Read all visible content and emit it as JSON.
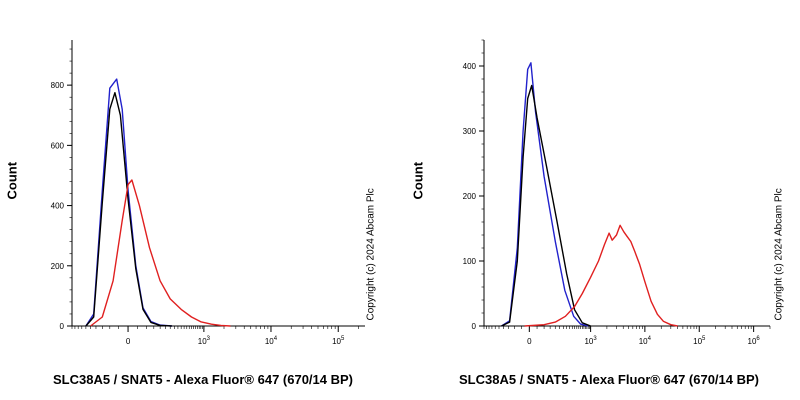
{
  "copyright": "Copyright (c) 2024 Abcam Plc",
  "colors": {
    "black": "#000000",
    "blue": "#2222cc",
    "red": "#e02020"
  },
  "chart_data": [
    {
      "type": "line",
      "ylabel": "Count",
      "xlabel": "SLC38A5 / SNAT5 - Alexa Fluor® 647 (670/14 BP)",
      "x_scale": "biexponential",
      "x_ticks": [
        "0",
        "10^3",
        "10^4",
        "10^5"
      ],
      "y_ticks": [
        0,
        200,
        400,
        600,
        800
      ],
      "ylim": [
        0,
        950
      ],
      "series": [
        {
          "color": "#2222cc",
          "points": [
            [
              -300,
              0
            ],
            [
              -220,
              40
            ],
            [
              -150,
              450
            ],
            [
              -100,
              790
            ],
            [
              -60,
              820
            ],
            [
              -30,
              720
            ],
            [
              0,
              450
            ],
            [
              40,
              200
            ],
            [
              80,
              60
            ],
            [
              130,
              15
            ],
            [
              200,
              3
            ],
            [
              320,
              0
            ]
          ]
        },
        {
          "color": "#000000",
          "points": [
            [
              -300,
              0
            ],
            [
              -220,
              30
            ],
            [
              -150,
              410
            ],
            [
              -100,
              720
            ],
            [
              -70,
              775
            ],
            [
              -40,
              700
            ],
            [
              0,
              420
            ],
            [
              40,
              190
            ],
            [
              80,
              55
            ],
            [
              130,
              12
            ],
            [
              200,
              2
            ],
            [
              320,
              0
            ]
          ]
        },
        {
          "color": "#e02020",
          "points": [
            [
              -250,
              0
            ],
            [
              -150,
              30
            ],
            [
              -80,
              150
            ],
            [
              -30,
              350
            ],
            [
              0,
              470
            ],
            [
              20,
              485
            ],
            [
              60,
              400
            ],
            [
              120,
              260
            ],
            [
              200,
              150
            ],
            [
              300,
              90
            ],
            [
              450,
              55
            ],
            [
              650,
              30
            ],
            [
              900,
              14
            ],
            [
              1300,
              6
            ],
            [
              1800,
              2
            ],
            [
              2500,
              0
            ]
          ]
        }
      ]
    },
    {
      "type": "line",
      "ylabel": "Count",
      "xlabel": "SLC38A5 / SNAT5 - Alexa Fluor® 647 (670/14 BP)",
      "x_scale": "biexponential",
      "x_ticks": [
        "0",
        "10^3",
        "10^4",
        "10^5",
        "10^6"
      ],
      "y_ticks": [
        0,
        100,
        200,
        300,
        400
      ],
      "ylim": [
        0,
        440
      ],
      "series": [
        {
          "color": "#2222cc",
          "points": [
            [
              -220,
              0
            ],
            [
              -140,
              8
            ],
            [
              -80,
              120
            ],
            [
              -40,
              300
            ],
            [
              -10,
              395
            ],
            [
              10,
              405
            ],
            [
              40,
              330
            ],
            [
              100,
              230
            ],
            [
              200,
              130
            ],
            [
              320,
              55
            ],
            [
              480,
              15
            ],
            [
              650,
              3
            ],
            [
              900,
              0
            ]
          ]
        },
        {
          "color": "#000000",
          "points": [
            [
              -220,
              0
            ],
            [
              -140,
              6
            ],
            [
              -80,
              100
            ],
            [
              -40,
              260
            ],
            [
              -10,
              350
            ],
            [
              15,
              370
            ],
            [
              50,
              320
            ],
            [
              120,
              245
            ],
            [
              220,
              160
            ],
            [
              350,
              80
            ],
            [
              500,
              25
            ],
            [
              700,
              5
            ],
            [
              1000,
              0
            ]
          ]
        },
        {
          "color": "#e02020",
          "points": [
            [
              -30,
              0
            ],
            [
              100,
              2
            ],
            [
              200,
              6
            ],
            [
              330,
              15
            ],
            [
              500,
              30
            ],
            [
              700,
              50
            ],
            [
              1000,
              75
            ],
            [
              1400,
              100
            ],
            [
              1800,
              125
            ],
            [
              2200,
              143
            ],
            [
              2500,
              132
            ],
            [
              3000,
              140
            ],
            [
              3500,
              155
            ],
            [
              4100,
              145
            ],
            [
              4700,
              138
            ],
            [
              5500,
              130
            ],
            [
              6500,
              115
            ],
            [
              8000,
              95
            ],
            [
              10000,
              68
            ],
            [
              13000,
              38
            ],
            [
              17000,
              18
            ],
            [
              22000,
              7
            ],
            [
              30000,
              2
            ],
            [
              40000,
              0
            ]
          ]
        }
      ]
    }
  ]
}
